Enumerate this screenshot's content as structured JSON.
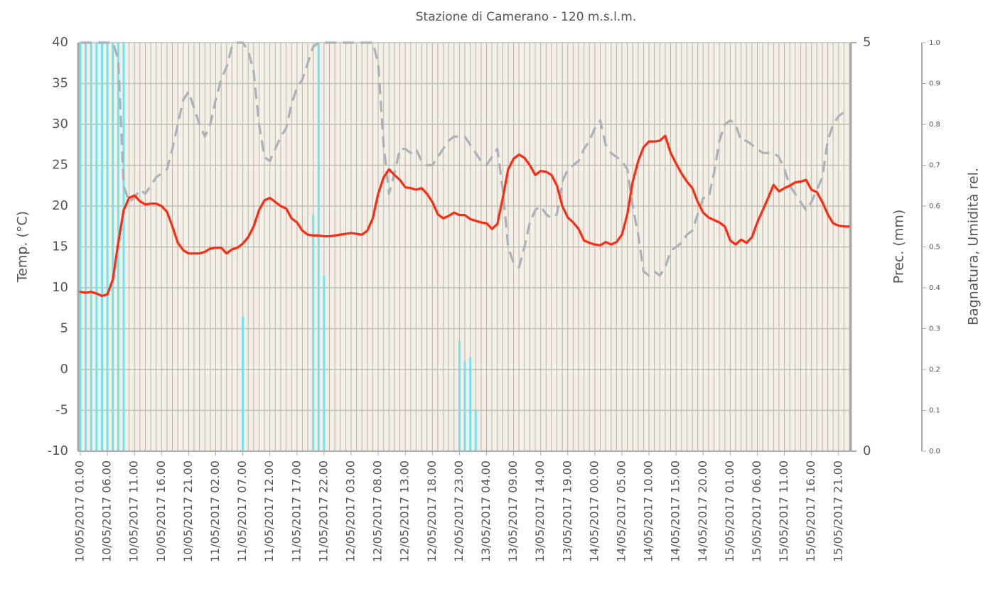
{
  "chart_data": {
    "type": "line",
    "title": "Stazione di Camerano - 120 m.s.l.m.",
    "ylabel": "Temp. (°C)",
    "y2label": "Prec. (mm)",
    "y3label": "Bagnatura, Umidità rel.",
    "categories": [
      "10/05/2017 01.00",
      null,
      null,
      null,
      null,
      "10/05/2017 06.00",
      null,
      null,
      null,
      null,
      "10/05/2017 11.00",
      null,
      null,
      null,
      null,
      "10/05/2017 16.00",
      null,
      null,
      null,
      null,
      "10/05/2017 21.00",
      null,
      null,
      null,
      null,
      "11/05/2017 02.00",
      null,
      null,
      null,
      null,
      "11/05/2017 07.00",
      null,
      null,
      null,
      null,
      "11/05/2017 12.00",
      null,
      null,
      null,
      null,
      "11/05/2017 17.00",
      null,
      null,
      null,
      null,
      "11/05/2017 22.00",
      null,
      null,
      null,
      null,
      "12/05/2017 03.00",
      null,
      null,
      null,
      null,
      "12/05/2017 08.00",
      null,
      null,
      null,
      null,
      "12/05/2017 13.00",
      null,
      null,
      null,
      null,
      "12/05/2017 18.00",
      null,
      null,
      null,
      null,
      "12/05/2017 23.00",
      null,
      null,
      null,
      null,
      "13/05/2017 04.00",
      null,
      null,
      null,
      null,
      "13/05/2017 09.00",
      null,
      null,
      null,
      null,
      "13/05/2017 14.00",
      null,
      null,
      null,
      null,
      "13/05/2017 19.00",
      null,
      null,
      null,
      null,
      "14/05/2017 00.00",
      null,
      null,
      null,
      null,
      "14/05/2017 05.00",
      null,
      null,
      null,
      null,
      "14/05/2017 10.00",
      null,
      null,
      null,
      null,
      "14/05/2017 15.00",
      null,
      null,
      null,
      null,
      "14/05/2017 20.00",
      null,
      null,
      null,
      null,
      "15/05/2017 01.00",
      null,
      null,
      null,
      null,
      "15/05/2017 06.00",
      null,
      null,
      null,
      null,
      "15/05/2017 11.00",
      null,
      null,
      null,
      null,
      "15/05/2017 16.00",
      null,
      null,
      null,
      null,
      "15/05/2017 21.00",
      null,
      null
    ],
    "series": [
      {
        "type": "bar",
        "axis": "y2",
        "color": "#6fe4ee",
        "values": [
          5,
          5,
          5,
          5,
          5,
          5,
          5,
          5,
          5,
          0,
          0,
          0,
          0,
          0,
          0,
          0,
          0,
          0,
          0,
          0,
          0,
          0,
          0,
          0,
          0,
          0,
          0,
          0,
          0,
          0,
          1.65,
          0,
          0,
          0,
          0,
          0,
          0,
          0,
          0,
          0,
          0,
          0,
          0,
          2.9,
          5,
          2.15,
          0,
          0,
          0,
          0,
          0,
          0,
          0,
          0,
          0,
          0,
          0,
          0,
          0,
          0,
          0,
          0,
          0,
          0,
          0,
          0,
          0,
          0,
          0,
          0,
          1.35,
          1.1,
          1.15,
          0.5,
          0,
          0,
          0,
          0,
          0,
          0,
          0,
          0,
          0,
          0,
          0,
          0,
          0,
          0,
          0,
          0,
          0,
          0,
          0,
          0,
          0,
          0,
          0,
          0,
          0,
          0,
          0,
          0,
          0,
          0,
          0,
          0,
          0,
          0,
          0,
          0,
          0,
          0,
          0,
          0,
          0,
          0,
          0,
          0,
          0,
          0,
          0,
          0,
          0,
          0,
          0,
          0,
          0,
          0,
          0,
          0,
          0,
          0,
          0,
          0,
          0,
          0,
          0,
          0,
          0,
          0,
          0,
          0,
          0
        ]
      },
      {
        "type": "line",
        "axis": "y3",
        "color": "#a9b1ba",
        "dashed": true,
        "values": [
          1,
          1,
          1,
          1,
          1,
          1,
          1,
          0.96,
          0.65,
          0.61,
          0.62,
          0.64,
          0.63,
          0.65,
          0.67,
          0.68,
          0.69,
          0.74,
          0.8,
          0.86,
          0.88,
          0.84,
          0.8,
          0.77,
          0.8,
          0.86,
          0.91,
          0.94,
          0.99,
          1,
          1,
          0.98,
          0.93,
          0.8,
          0.72,
          0.71,
          0.74,
          0.77,
          0.79,
          0.85,
          0.89,
          0.91,
          0.95,
          0.99,
          1,
          1,
          1,
          1,
          1,
          1,
          1,
          1,
          1,
          1,
          1,
          0.95,
          0.75,
          0.63,
          0.68,
          0.74,
          0.74,
          0.73,
          0.74,
          0.71,
          0.7,
          0.7,
          0.72,
          0.74,
          0.76,
          0.77,
          0.77,
          0.77,
          0.75,
          0.73,
          0.71,
          0.7,
          0.72,
          0.74,
          0.64,
          0.5,
          0.46,
          0.45,
          0.5,
          0.56,
          0.59,
          0.6,
          0.58,
          0.57,
          0.58,
          0.66,
          0.69,
          0.7,
          0.71,
          0.74,
          0.76,
          0.79,
          0.81,
          0.75,
          0.73,
          0.72,
          0.71,
          0.69,
          0.6,
          0.53,
          0.44,
          0.43,
          0.44,
          0.43,
          0.45,
          0.49,
          0.5,
          0.51,
          0.53,
          0.54,
          0.58,
          0.62,
          0.62,
          0.68,
          0.76,
          0.8,
          0.81,
          0.8,
          0.76,
          0.76,
          0.75,
          0.74,
          0.73,
          0.73,
          0.73,
          0.72,
          0.69,
          0.65,
          0.63,
          0.61,
          0.59,
          0.61,
          0.64,
          0.67,
          0.76,
          0.8,
          0.82,
          0.83,
          0.83
        ]
      },
      {
        "type": "line",
        "axis": "y",
        "color": "#ff2a10",
        "values": [
          9.5,
          9.4,
          9.5,
          9.3,
          9.0,
          9.2,
          11.0,
          15.5,
          19.5,
          21.0,
          21.3,
          20.6,
          20.2,
          20.3,
          20.3,
          20.0,
          19.3,
          17.5,
          15.5,
          14.6,
          14.2,
          14.2,
          14.2,
          14.4,
          14.8,
          14.9,
          14.9,
          14.2,
          14.7,
          14.9,
          15.4,
          16.2,
          17.5,
          19.5,
          20.7,
          21.0,
          20.5,
          20.0,
          19.7,
          18.5,
          18.0,
          17.0,
          16.5,
          16.4,
          16.4,
          16.3,
          16.3,
          16.4,
          16.5,
          16.6,
          16.7,
          16.6,
          16.5,
          17.0,
          18.5,
          21.5,
          23.5,
          24.5,
          23.8,
          23.2,
          22.3,
          22.2,
          22.0,
          22.2,
          21.5,
          20.5,
          19.0,
          18.5,
          18.8,
          19.2,
          18.9,
          18.9,
          18.4,
          18.2,
          18.0,
          17.9,
          17.2,
          17.8,
          21.0,
          24.5,
          25.8,
          26.3,
          25.9,
          25.0,
          23.8,
          24.3,
          24.2,
          23.8,
          22.5,
          20.0,
          18.6,
          18.0,
          17.2,
          15.8,
          15.5,
          15.3,
          15.2,
          15.6,
          15.3,
          15.6,
          16.5,
          19.0,
          23.0,
          25.5,
          27.2,
          27.9,
          27.9,
          28.0,
          28.6,
          26.5,
          25.2,
          24.0,
          23.0,
          22.2,
          20.5,
          19.2,
          18.6,
          18.3,
          18.0,
          17.5,
          15.8,
          15.3,
          15.9,
          15.5,
          16.2,
          18.0,
          19.5,
          21.0,
          22.6,
          21.8,
          22.2,
          22.5,
          22.9,
          23.0,
          23.2,
          22.0,
          21.7,
          20.5,
          19.0,
          17.9,
          17.6,
          17.5,
          17.5
        ]
      }
    ],
    "ylim": [
      -10,
      40
    ],
    "yticks": [
      -10,
      -5,
      0,
      5,
      10,
      15,
      20,
      25,
      30,
      35,
      40
    ],
    "y2lim": [
      0,
      5
    ],
    "y2ticks": [
      0,
      5
    ],
    "y3lim": [
      0,
      1
    ],
    "y3ticks": [
      {
        "value": 0,
        "label": "0.0"
      },
      0.1,
      0.2,
      0.3,
      0.4,
      0.5,
      0.6,
      0.7,
      0.8,
      0.9,
      {
        "value": 1,
        "label": "1.0"
      }
    ],
    "grid": true
  }
}
